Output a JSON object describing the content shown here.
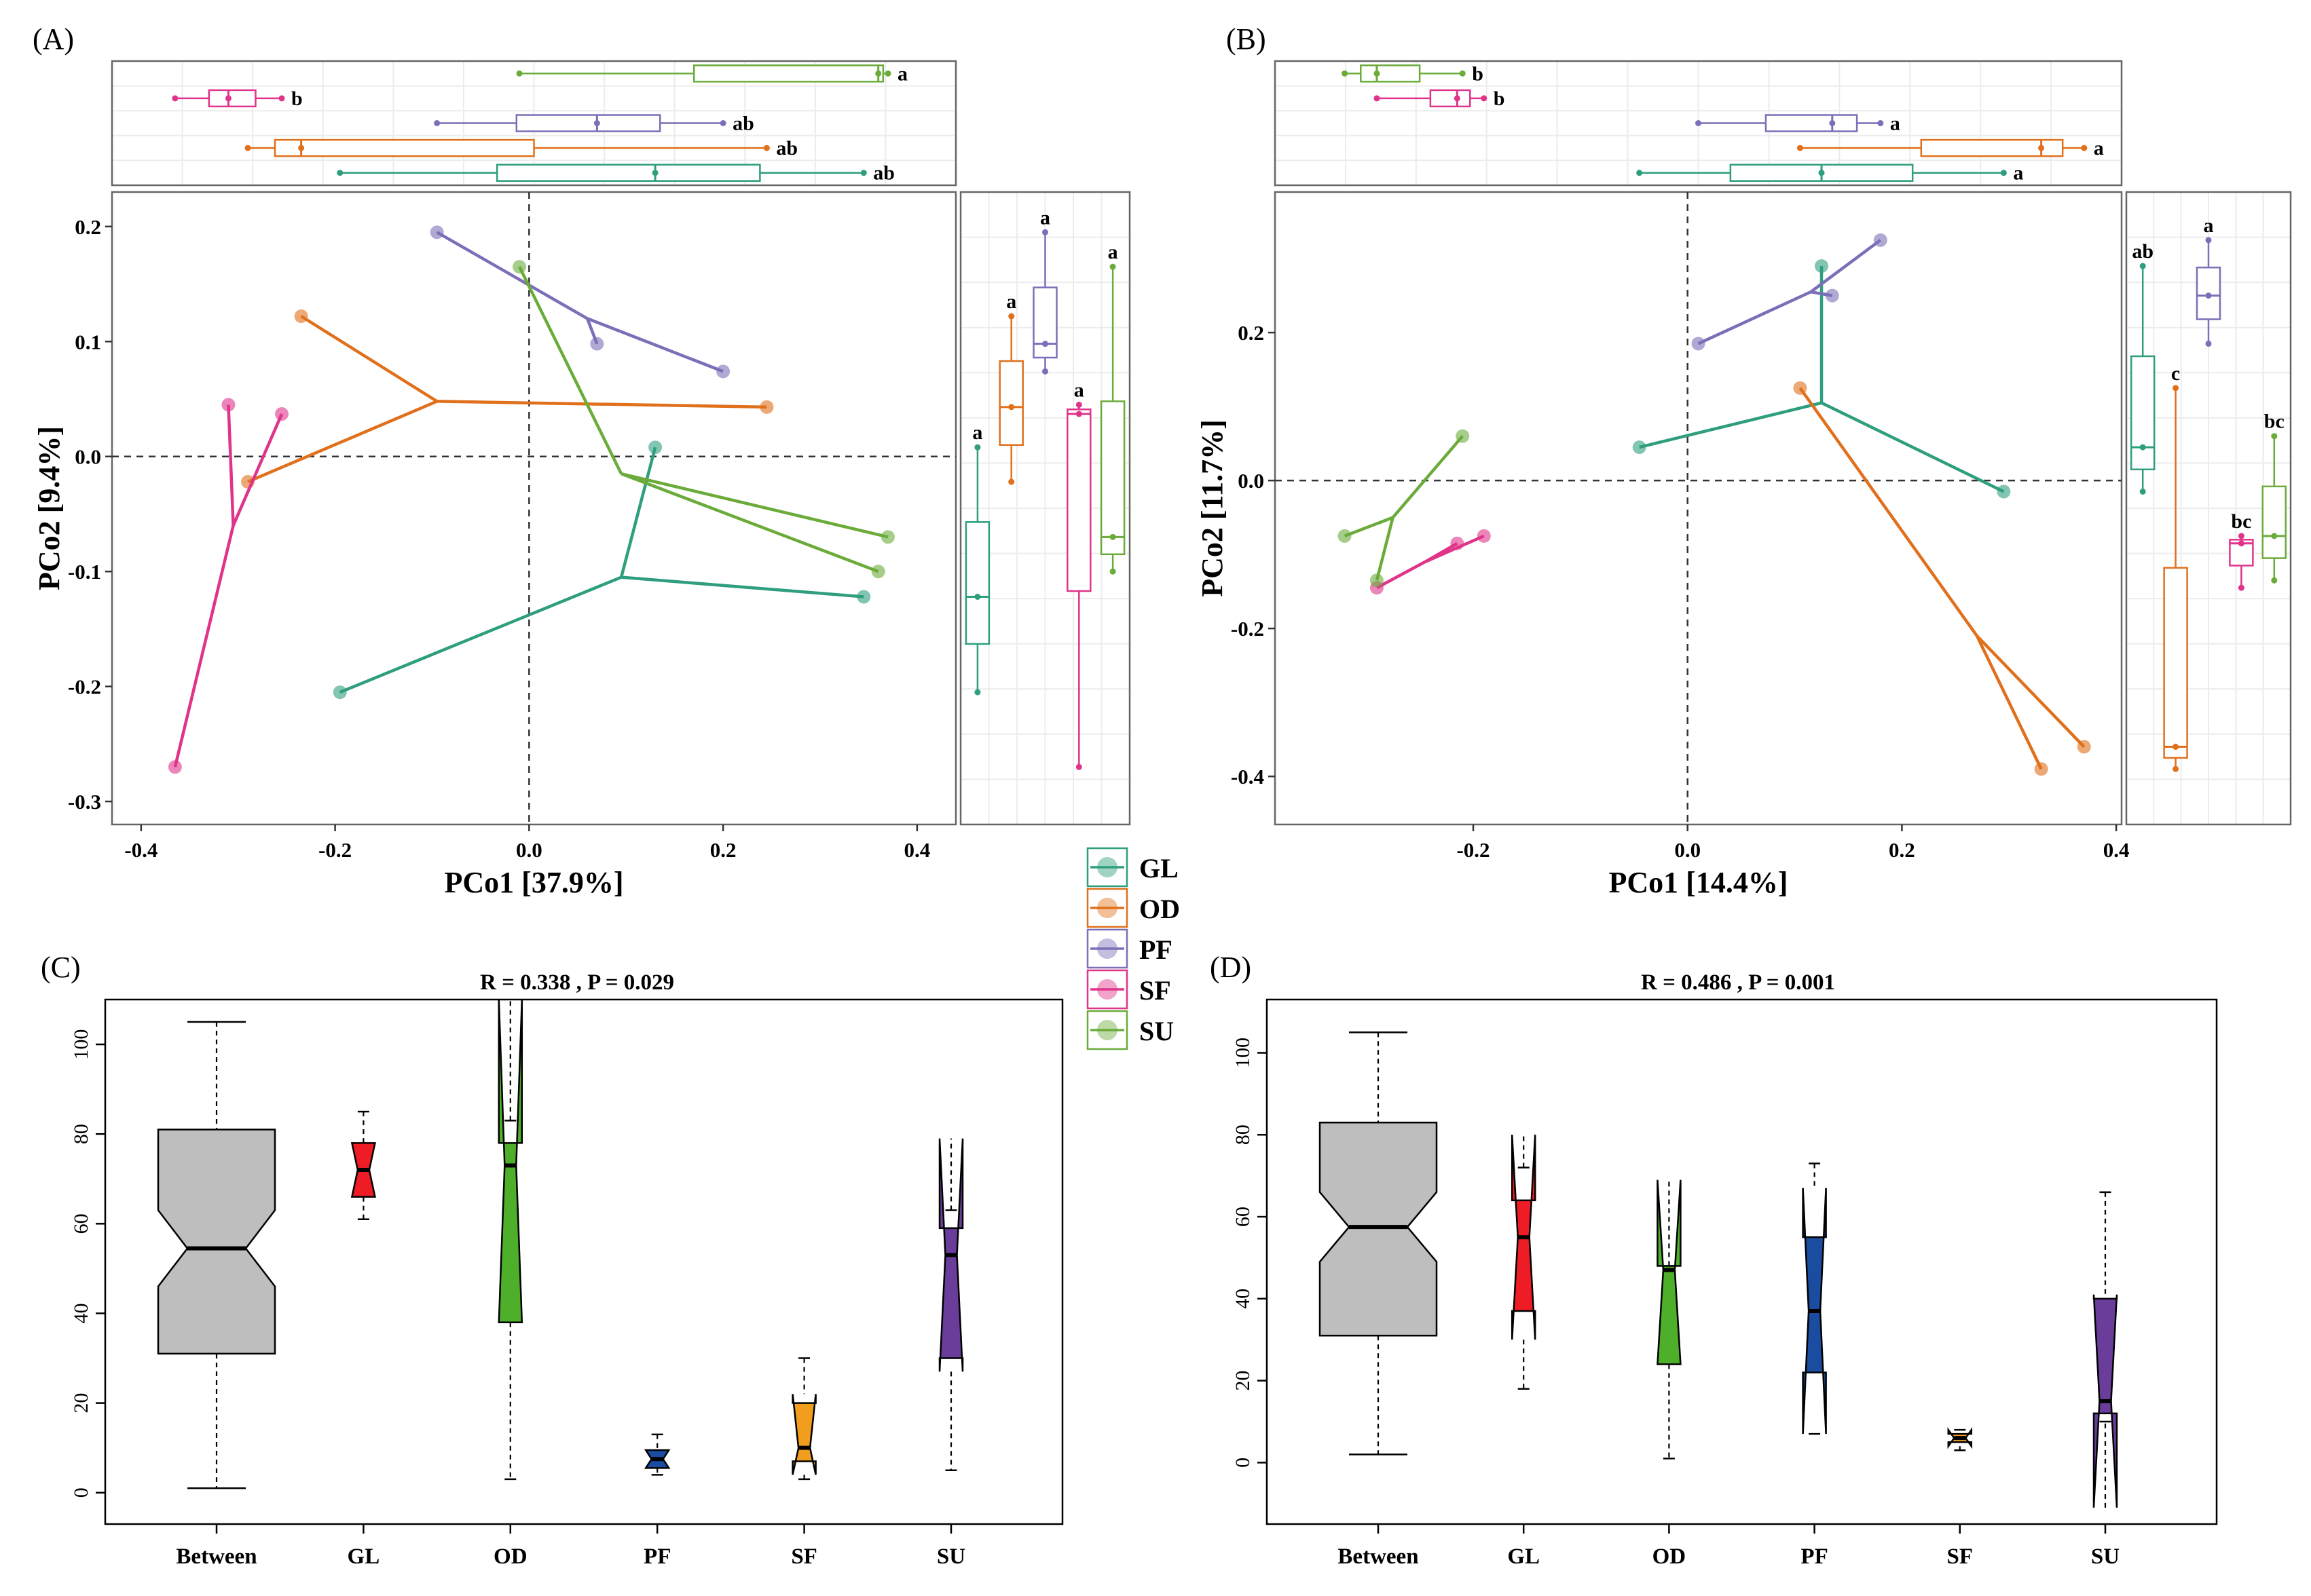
{
  "colors": {
    "GL": "#2e9e7f",
    "OD": "#e0701b",
    "PF": "#7b6fb8",
    "SF": "#e0338a",
    "SU": "#6bab3a"
  },
  "legend": {
    "items": [
      {
        "key": "GL",
        "label": "GL"
      },
      {
        "key": "OD",
        "label": "OD"
      },
      {
        "key": "PF",
        "label": "PF"
      },
      {
        "key": "SF",
        "label": "SF"
      },
      {
        "key": "SU",
        "label": "SU"
      }
    ]
  },
  "chart_data": [
    {
      "panel": "(A)",
      "type": "scatter",
      "xlabel": "PCo1 [37.9%]",
      "ylabel": "PCo2 [9.4%]",
      "xlim": [
        -0.43,
        0.44
      ],
      "ylim": [
        -0.32,
        0.23
      ],
      "xticks": [
        "-0.4",
        "-0.2",
        "0.0",
        "0.2",
        "0.4"
      ],
      "yticks": [
        "0.2",
        "0.1",
        "0.0",
        "-0.1",
        "-0.2",
        "-0.3"
      ],
      "groups": [
        {
          "name": "GL",
          "centroid": [
            0.095,
            -0.105
          ],
          "points": [
            [
              0.13,
              0.008
            ],
            [
              0.345,
              -0.122
            ],
            [
              -0.195,
              -0.205
            ]
          ]
        },
        {
          "name": "OD",
          "centroid": [
            -0.095,
            0.048
          ],
          "points": [
            [
              -0.235,
              0.122
            ],
            [
              0.245,
              0.043
            ],
            [
              -0.29,
              -0.022
            ]
          ]
        },
        {
          "name": "PF",
          "centroid": [
            0.06,
            0.12
          ],
          "points": [
            [
              -0.095,
              0.195
            ],
            [
              0.2,
              0.074
            ],
            [
              0.07,
              0.098
            ]
          ]
        },
        {
          "name": "SF",
          "centroid": [
            -0.305,
            -0.06
          ],
          "points": [
            [
              -0.31,
              0.045
            ],
            [
              -0.255,
              0.037
            ],
            [
              -0.365,
              -0.27
            ]
          ]
        },
        {
          "name": "SU",
          "centroid": [
            0.095,
            -0.015
          ],
          "points": [
            [
              -0.01,
              0.165
            ],
            [
              0.37,
              -0.07
            ],
            [
              0.36,
              -0.1
            ]
          ]
        }
      ],
      "top_boxes": [
        {
          "name": "SU",
          "min": -0.01,
          "q1": 0.17,
          "median": 0.36,
          "q3": 0.365,
          "max": 0.37,
          "letter": "a"
        },
        {
          "name": "SF",
          "min": -0.365,
          "q1": -0.33,
          "median": -0.31,
          "q3": -0.282,
          "max": -0.255,
          "letter": "b"
        },
        {
          "name": "PF",
          "min": -0.095,
          "q1": -0.013,
          "median": 0.07,
          "q3": 0.135,
          "max": 0.2,
          "letter": "ab"
        },
        {
          "name": "OD",
          "min": -0.29,
          "q1": -0.262,
          "median": -0.235,
          "q3": 0.005,
          "max": 0.245,
          "letter": "ab"
        },
        {
          "name": "GL",
          "min": -0.195,
          "q1": -0.033,
          "median": 0.13,
          "q3": 0.238,
          "max": 0.345,
          "letter": "ab"
        }
      ],
      "right_boxes": [
        {
          "name": "GL",
          "min": -0.205,
          "q1": -0.163,
          "median": -0.122,
          "q3": -0.057,
          "max": 0.008,
          "letter": "a"
        },
        {
          "name": "OD",
          "min": -0.022,
          "q1": 0.01,
          "median": 0.043,
          "q3": 0.083,
          "max": 0.122,
          "letter": "a"
        },
        {
          "name": "PF",
          "min": 0.074,
          "q1": 0.086,
          "median": 0.098,
          "q3": 0.147,
          "max": 0.195,
          "letter": "a"
        },
        {
          "name": "SF",
          "min": -0.27,
          "q1": -0.117,
          "median": 0.037,
          "q3": 0.041,
          "max": 0.045,
          "letter": "a"
        },
        {
          "name": "SU",
          "min": -0.1,
          "q1": -0.085,
          "median": -0.07,
          "q3": 0.048,
          "max": 0.165,
          "letter": "a"
        }
      ]
    },
    {
      "panel": "(B)",
      "type": "scatter",
      "xlabel": "PCo1 [14.4%]",
      "ylabel": "PCo2 [11.7%]",
      "xlim": [
        -0.385,
        0.405
      ],
      "ylim": [
        -0.465,
        0.39
      ],
      "xticks": [
        "-0.2",
        "0.0",
        "0.2",
        "0.4"
      ],
      "yticks": [
        "0.2",
        "0.0",
        "-0.2",
        "-0.4"
      ],
      "groups": [
        {
          "name": "GL",
          "centroid": [
            0.125,
            0.105
          ],
          "points": [
            [
              0.125,
              0.29
            ],
            [
              0.295,
              -0.015
            ],
            [
              -0.045,
              0.045
            ]
          ]
        },
        {
          "name": "OD",
          "centroid": [
            0.27,
            -0.21
          ],
          "points": [
            [
              0.105,
              0.125
            ],
            [
              0.33,
              -0.39
            ],
            [
              0.37,
              -0.36
            ]
          ]
        },
        {
          "name": "PF",
          "centroid": [
            0.115,
            0.255
          ],
          "points": [
            [
              0.18,
              0.325
            ],
            [
              0.135,
              0.25
            ],
            [
              0.01,
              0.185
            ]
          ]
        },
        {
          "name": "SF",
          "centroid": [
            -0.245,
            -0.11
          ],
          "points": [
            [
              -0.29,
              -0.145
            ],
            [
              -0.215,
              -0.085
            ],
            [
              -0.19,
              -0.075
            ]
          ]
        },
        {
          "name": "SU",
          "centroid": [
            -0.275,
            -0.05
          ],
          "points": [
            [
              -0.21,
              0.06
            ],
            [
              -0.32,
              -0.075
            ],
            [
              -0.29,
              -0.135
            ]
          ]
        }
      ],
      "top_boxes": [
        {
          "name": "SU",
          "min": -0.32,
          "q1": -0.305,
          "median": -0.29,
          "q3": -0.25,
          "max": -0.21,
          "letter": "b"
        },
        {
          "name": "SF",
          "min": -0.29,
          "q1": -0.24,
          "median": -0.215,
          "q3": -0.203,
          "max": -0.19,
          "letter": "b"
        },
        {
          "name": "PF",
          "min": 0.01,
          "q1": 0.073,
          "median": 0.135,
          "q3": 0.158,
          "max": 0.18,
          "letter": "a"
        },
        {
          "name": "OD",
          "min": 0.105,
          "q1": 0.218,
          "median": 0.33,
          "q3": 0.35,
          "max": 0.37,
          "letter": "a"
        },
        {
          "name": "GL",
          "min": -0.045,
          "q1": 0.04,
          "median": 0.125,
          "q3": 0.21,
          "max": 0.295,
          "letter": "a"
        }
      ],
      "right_boxes": [
        {
          "name": "GL",
          "min": -0.015,
          "q1": 0.015,
          "median": 0.045,
          "q3": 0.168,
          "max": 0.29,
          "letter": "ab"
        },
        {
          "name": "OD",
          "min": -0.39,
          "q1": -0.375,
          "median": -0.36,
          "q3": -0.118,
          "max": 0.125,
          "letter": "c"
        },
        {
          "name": "PF",
          "min": 0.185,
          "q1": 0.218,
          "median": 0.25,
          "q3": 0.288,
          "max": 0.325,
          "letter": "a"
        },
        {
          "name": "SF",
          "min": -0.145,
          "q1": -0.115,
          "median": -0.085,
          "q3": -0.08,
          "max": -0.075,
          "letter": "bc"
        },
        {
          "name": "SU",
          "min": -0.135,
          "q1": -0.105,
          "median": -0.075,
          "q3": -0.008,
          "max": 0.06,
          "letter": "bc"
        }
      ]
    },
    {
      "panel": "(C)",
      "type": "boxplot",
      "title": "R =  0.338 ,  P =  0.029",
      "ylim": [
        -7,
        110
      ],
      "yticks": [
        "0",
        "20",
        "40",
        "60",
        "80",
        "100"
      ],
      "categories": [
        "Between",
        "GL",
        "OD",
        "PF",
        "SF",
        "SU"
      ],
      "boxes": [
        {
          "name": "Between",
          "color": "#bebebe",
          "min": 1,
          "q1": 31,
          "median": 54.5,
          "q3": 81,
          "max": 105,
          "notch_low": 46,
          "notch_high": 63
        },
        {
          "name": "GL",
          "color": "#ee1c25",
          "min": 61,
          "q1": 66,
          "median": 72,
          "q3": 78,
          "max": 85,
          "notch_low": 66,
          "notch_high": 78
        },
        {
          "name": "OD",
          "color": "#4daf2a",
          "min": 3,
          "q1": 38,
          "median": 73,
          "q3": 78,
          "max": 83,
          "notch_low": 38,
          "notch_high": 110
        },
        {
          "name": "PF",
          "color": "#1a4c9f",
          "min": 4,
          "q1": 5.5,
          "median": 7.5,
          "q3": 9.5,
          "max": 13,
          "notch_low": 5.5,
          "notch_high": 9.5
        },
        {
          "name": "SF",
          "color": "#f19e1e",
          "min": 3,
          "q1": 7,
          "median": 10,
          "q3": 20,
          "max": 30,
          "notch_low": 4,
          "notch_high": 22
        },
        {
          "name": "SU",
          "color": "#6a3d9a",
          "min": 5,
          "q1": 30,
          "median": 53,
          "q3": 59,
          "max": 63,
          "notch_low": 27,
          "notch_high": 79
        }
      ]
    },
    {
      "panel": "(D)",
      "type": "boxplot",
      "title": "R =  0.486 ,  P =  0.001",
      "ylim": [
        -15,
        113
      ],
      "yticks": [
        "0",
        "20",
        "40",
        "60",
        "80",
        "100"
      ],
      "categories": [
        "Between",
        "GL",
        "OD",
        "PF",
        "SF",
        "SU"
      ],
      "boxes": [
        {
          "name": "Between",
          "color": "#bebebe",
          "min": 2,
          "q1": 31,
          "median": 57.5,
          "q3": 83,
          "max": 105,
          "notch_low": 49,
          "notch_high": 66
        },
        {
          "name": "GL",
          "color": "#ee1c25",
          "min": 18,
          "q1": 37,
          "median": 55,
          "q3": 64,
          "max": 72,
          "notch_low": 30,
          "notch_high": 80
        },
        {
          "name": "OD",
          "color": "#4daf2a",
          "min": 1,
          "q1": 24,
          "median": 47,
          "q3": 48,
          "max": 48,
          "notch_low": 24,
          "notch_high": 69
        },
        {
          "name": "PF",
          "color": "#1a4c9f",
          "min": 7,
          "q1": 22,
          "median": 37,
          "q3": 55,
          "max": 73,
          "notch_low": 7,
          "notch_high": 67
        },
        {
          "name": "SF",
          "color": "#f19e1e",
          "min": 3,
          "q1": 5,
          "median": 6,
          "q3": 7,
          "max": 8,
          "notch_low": 4,
          "notch_high": 8
        },
        {
          "name": "SU",
          "color": "#6a3d9a",
          "min": 10,
          "q1": 12,
          "median": 15,
          "q3": 40,
          "max": 66,
          "notch_low": -11,
          "notch_high": 41
        }
      ]
    }
  ]
}
